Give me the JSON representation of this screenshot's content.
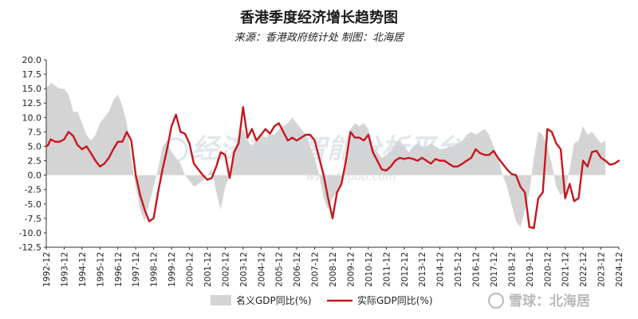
{
  "chart_data": {
    "type": "area",
    "title": "香港季度经济增长趋势图",
    "subtitle": "来源：香港政府统计处 制图：北海居",
    "xlabel": "",
    "ylabel": "",
    "ylim": [
      -12.5,
      20
    ],
    "y_ticks": [
      "20.0",
      "17.5",
      "15.0",
      "12.5",
      "10.0",
      "7.5",
      "5.0",
      "2.5",
      "0.0",
      "-2.5",
      "-5.0",
      "-7.5",
      "-10.0",
      "-12.5"
    ],
    "x_ticks": [
      "1992-12",
      "1993-12",
      "1994-12",
      "1995-12",
      "1996-12",
      "1997-12",
      "1998-12",
      "1999-12",
      "2000-12",
      "2001-12",
      "2002-12",
      "2003-12",
      "2004-12",
      "2005-12",
      "2006-12",
      "2007-12",
      "2008-12",
      "2009-12",
      "2010-12",
      "2011-12",
      "2012-12",
      "2013-12",
      "2014-12",
      "2015-12",
      "2016-12",
      "2017-12",
      "2018-12",
      "2019-12",
      "2020-12",
      "2021-12",
      "2022-12",
      "2023-12",
      "2024-12"
    ],
    "grid": false,
    "legend_position": "bottom",
    "series": [
      {
        "name": "名义GDP同比(%)",
        "kind": "area",
        "color": "#d4d4d4",
        "points": [
          [
            1992.75,
            15.0
          ],
          [
            1993.0,
            16.0
          ],
          [
            1993.25,
            15.5
          ],
          [
            1993.5,
            15.0
          ],
          [
            1993.75,
            15.0
          ],
          [
            1994.0,
            14.0
          ],
          [
            1994.25,
            11.0
          ],
          [
            1994.5,
            11.0
          ],
          [
            1994.75,
            9.0
          ],
          [
            1995.0,
            7.0
          ],
          [
            1995.25,
            6.0
          ],
          [
            1995.5,
            7.0
          ],
          [
            1995.75,
            9.0
          ],
          [
            1996.0,
            10.0
          ],
          [
            1996.25,
            11.0
          ],
          [
            1996.5,
            13.0
          ],
          [
            1996.75,
            14.0
          ],
          [
            1997.0,
            12.0
          ],
          [
            1997.25,
            9.0
          ],
          [
            1997.5,
            3.0
          ],
          [
            1997.75,
            -2.0
          ],
          [
            1998.0,
            -6.0
          ],
          [
            1998.25,
            -8.0
          ],
          [
            1998.5,
            -5.0
          ],
          [
            1998.75,
            -2.0
          ],
          [
            1999.0,
            1.0
          ],
          [
            1999.25,
            5.0
          ],
          [
            1999.5,
            6.0
          ],
          [
            1999.75,
            4.0
          ],
          [
            2000.0,
            3.0
          ],
          [
            2000.25,
            2.0
          ],
          [
            2000.5,
            0.0
          ],
          [
            2000.75,
            -1.0
          ],
          [
            2001.0,
            -2.0
          ],
          [
            2001.25,
            -1.5
          ],
          [
            2001.5,
            -1.0
          ],
          [
            2001.75,
            0.0
          ],
          [
            2002.0,
            1.0
          ],
          [
            2002.25,
            -3.0
          ],
          [
            2002.5,
            -6.0
          ],
          [
            2002.75,
            -2.0
          ],
          [
            2003.0,
            0.0
          ],
          [
            2003.25,
            4.0
          ],
          [
            2003.5,
            7.0
          ],
          [
            2003.75,
            8.0
          ],
          [
            2004.0,
            6.0
          ],
          [
            2004.25,
            5.0
          ],
          [
            2004.5,
            6.0
          ],
          [
            2004.75,
            7.0
          ],
          [
            2005.0,
            6.5
          ],
          [
            2005.25,
            7.0
          ],
          [
            2005.5,
            7.0
          ],
          [
            2005.75,
            8.0
          ],
          [
            2006.0,
            8.5
          ],
          [
            2006.25,
            9.0
          ],
          [
            2006.5,
            10.0
          ],
          [
            2006.75,
            9.0
          ],
          [
            2007.0,
            8.0
          ],
          [
            2007.25,
            7.0
          ],
          [
            2007.5,
            5.0
          ],
          [
            2007.75,
            3.0
          ],
          [
            2008.0,
            0.0
          ],
          [
            2008.25,
            -4.0
          ],
          [
            2008.5,
            -6.0
          ],
          [
            2008.75,
            -4.0
          ],
          [
            2009.0,
            -3.0
          ],
          [
            2009.25,
            -2.0
          ],
          [
            2009.5,
            3.0
          ],
          [
            2009.75,
            8.0
          ],
          [
            2010.0,
            9.0
          ],
          [
            2010.25,
            8.5
          ],
          [
            2010.5,
            9.0
          ],
          [
            2010.75,
            8.0
          ],
          [
            2011.0,
            5.0
          ],
          [
            2011.25,
            4.0
          ],
          [
            2011.5,
            3.0
          ],
          [
            2011.75,
            3.5
          ],
          [
            2012.0,
            4.0
          ],
          [
            2012.25,
            5.5
          ],
          [
            2012.5,
            6.0
          ],
          [
            2012.75,
            5.0
          ],
          [
            2013.0,
            4.0
          ],
          [
            2013.25,
            5.0
          ],
          [
            2013.5,
            5.5
          ],
          [
            2013.75,
            5.0
          ],
          [
            2014.0,
            5.0
          ],
          [
            2014.25,
            5.5
          ],
          [
            2014.5,
            5.0
          ],
          [
            2014.75,
            4.5
          ],
          [
            2015.0,
            4.5
          ],
          [
            2015.25,
            5.0
          ],
          [
            2015.5,
            5.0
          ],
          [
            2015.75,
            5.5
          ],
          [
            2016.0,
            6.0
          ],
          [
            2016.25,
            7.0
          ],
          [
            2016.5,
            7.5
          ],
          [
            2016.75,
            7.0
          ],
          [
            2017.0,
            7.5
          ],
          [
            2017.25,
            8.0
          ],
          [
            2017.5,
            7.0
          ],
          [
            2017.75,
            5.0
          ],
          [
            2018.0,
            3.0
          ],
          [
            2018.25,
            0.0
          ],
          [
            2018.5,
            -2.0
          ],
          [
            2018.75,
            -5.0
          ],
          [
            2019.0,
            -8.0
          ],
          [
            2019.25,
            -9.0
          ],
          [
            2019.5,
            -6.0
          ],
          [
            2019.75,
            -3.0
          ],
          [
            2020.0,
            3.0
          ],
          [
            2020.25,
            7.5
          ],
          [
            2020.5,
            7.0
          ],
          [
            2020.75,
            5.0
          ],
          [
            2021.0,
            2.0
          ],
          [
            2021.25,
            -2.0
          ],
          [
            2021.5,
            -3.5
          ],
          [
            2021.75,
            -3.0
          ],
          [
            2022.0,
            1.0
          ],
          [
            2022.25,
            5.5
          ],
          [
            2022.5,
            6.0
          ],
          [
            2022.75,
            8.5
          ],
          [
            2023.0,
            7.0
          ],
          [
            2023.25,
            7.5
          ],
          [
            2023.5,
            6.5
          ],
          [
            2023.75,
            5.5
          ],
          [
            2024.0,
            6.0
          ]
        ]
      },
      {
        "name": "实际GDP同比(%)",
        "kind": "line",
        "color": "#c8161d",
        "points": [
          [
            1992.75,
            5.0
          ],
          [
            1992.85,
            5.2
          ],
          [
            1993.0,
            6.2
          ],
          [
            1993.25,
            5.8
          ],
          [
            1993.5,
            5.8
          ],
          [
            1993.75,
            6.2
          ],
          [
            1994.0,
            7.5
          ],
          [
            1994.25,
            6.8
          ],
          [
            1994.5,
            5.2
          ],
          [
            1994.75,
            4.5
          ],
          [
            1995.0,
            5.0
          ],
          [
            1995.25,
            3.8
          ],
          [
            1995.5,
            2.5
          ],
          [
            1995.75,
            1.5
          ],
          [
            1996.0,
            2.0
          ],
          [
            1996.25,
            3.0
          ],
          [
            1996.5,
            4.5
          ],
          [
            1996.75,
            5.8
          ],
          [
            1997.0,
            5.8
          ],
          [
            1997.25,
            7.5
          ],
          [
            1997.5,
            6.0
          ],
          [
            1997.75,
            0.0
          ],
          [
            1998.0,
            -3.5
          ],
          [
            1998.25,
            -6.0
          ],
          [
            1998.5,
            -8.0
          ],
          [
            1998.75,
            -7.5
          ],
          [
            1999.0,
            -3.0
          ],
          [
            1999.25,
            1.0
          ],
          [
            1999.5,
            4.5
          ],
          [
            1999.75,
            8.5
          ],
          [
            2000.0,
            10.5
          ],
          [
            2000.25,
            7.5
          ],
          [
            2000.5,
            7.2
          ],
          [
            2000.75,
            5.5
          ],
          [
            2001.0,
            2.0
          ],
          [
            2001.25,
            1.0
          ],
          [
            2001.5,
            0.0
          ],
          [
            2001.75,
            -0.8
          ],
          [
            2002.0,
            -0.5
          ],
          [
            2002.25,
            1.5
          ],
          [
            2002.5,
            4.0
          ],
          [
            2002.75,
            3.5
          ],
          [
            2003.0,
            -0.5
          ],
          [
            2003.25,
            4.0
          ],
          [
            2003.5,
            5.5
          ],
          [
            2003.75,
            11.8
          ],
          [
            2004.0,
            6.5
          ],
          [
            2004.25,
            8.0
          ],
          [
            2004.5,
            6.0
          ],
          [
            2004.75,
            7.0
          ],
          [
            2005.0,
            8.0
          ],
          [
            2005.25,
            7.2
          ],
          [
            2005.5,
            8.5
          ],
          [
            2005.75,
            9.0
          ],
          [
            2006.0,
            7.5
          ],
          [
            2006.25,
            6.0
          ],
          [
            2006.5,
            6.5
          ],
          [
            2006.75,
            6.0
          ],
          [
            2007.0,
            6.5
          ],
          [
            2007.25,
            7.0
          ],
          [
            2007.5,
            7.0
          ],
          [
            2007.75,
            6.0
          ],
          [
            2008.0,
            3.0
          ],
          [
            2008.25,
            0.0
          ],
          [
            2008.5,
            -4.0
          ],
          [
            2008.75,
            -7.5
          ],
          [
            2009.0,
            -3.0
          ],
          [
            2009.25,
            -1.5
          ],
          [
            2009.5,
            2.5
          ],
          [
            2009.75,
            7.5
          ],
          [
            2010.0,
            6.5
          ],
          [
            2010.25,
            6.5
          ],
          [
            2010.5,
            6.0
          ],
          [
            2010.75,
            7.0
          ],
          [
            2011.0,
            4.0
          ],
          [
            2011.25,
            2.5
          ],
          [
            2011.5,
            1.0
          ],
          [
            2011.75,
            0.8
          ],
          [
            2012.0,
            1.5
          ],
          [
            2012.25,
            2.5
          ],
          [
            2012.5,
            3.0
          ],
          [
            2012.75,
            2.8
          ],
          [
            2013.0,
            3.0
          ],
          [
            2013.25,
            2.8
          ],
          [
            2013.5,
            2.5
          ],
          [
            2013.75,
            3.0
          ],
          [
            2014.0,
            2.5
          ],
          [
            2014.25,
            2.0
          ],
          [
            2014.5,
            2.8
          ],
          [
            2014.75,
            2.5
          ],
          [
            2015.0,
            2.5
          ],
          [
            2015.25,
            2.0
          ],
          [
            2015.5,
            1.5
          ],
          [
            2015.75,
            1.5
          ],
          [
            2016.0,
            2.0
          ],
          [
            2016.25,
            2.5
          ],
          [
            2016.5,
            3.0
          ],
          [
            2016.75,
            4.5
          ],
          [
            2017.0,
            3.8
          ],
          [
            2017.25,
            3.5
          ],
          [
            2017.5,
            3.5
          ],
          [
            2017.75,
            4.2
          ],
          [
            2018.0,
            3.0
          ],
          [
            2018.25,
            2.0
          ],
          [
            2018.5,
            1.0
          ],
          [
            2018.75,
            0.2
          ],
          [
            2019.0,
            0.0
          ],
          [
            2019.25,
            -2.0
          ],
          [
            2019.5,
            -3.0
          ],
          [
            2019.75,
            -9.0
          ],
          [
            2020.0,
            -9.2
          ],
          [
            2020.25,
            -4.0
          ],
          [
            2020.5,
            -3.0
          ],
          [
            2020.75,
            8.0
          ],
          [
            2021.0,
            7.5
          ],
          [
            2021.25,
            5.5
          ],
          [
            2021.5,
            4.5
          ],
          [
            2021.75,
            -4.0
          ],
          [
            2022.0,
            -1.5
          ],
          [
            2022.25,
            -4.5
          ],
          [
            2022.5,
            -4.0
          ],
          [
            2022.75,
            2.5
          ],
          [
            2023.0,
            1.5
          ],
          [
            2023.25,
            4.0
          ],
          [
            2023.5,
            4.2
          ],
          [
            2023.75,
            3.0
          ],
          [
            2024.0,
            2.5
          ],
          [
            2024.25,
            1.8
          ],
          [
            2024.5,
            2.0
          ],
          [
            2024.75,
            2.5
          ]
        ]
      }
    ]
  },
  "watermark": {
    "center_text": "经济数据智能分析平台",
    "url_text": "www.topdb.com",
    "brand_text": "雪球：北海居"
  }
}
